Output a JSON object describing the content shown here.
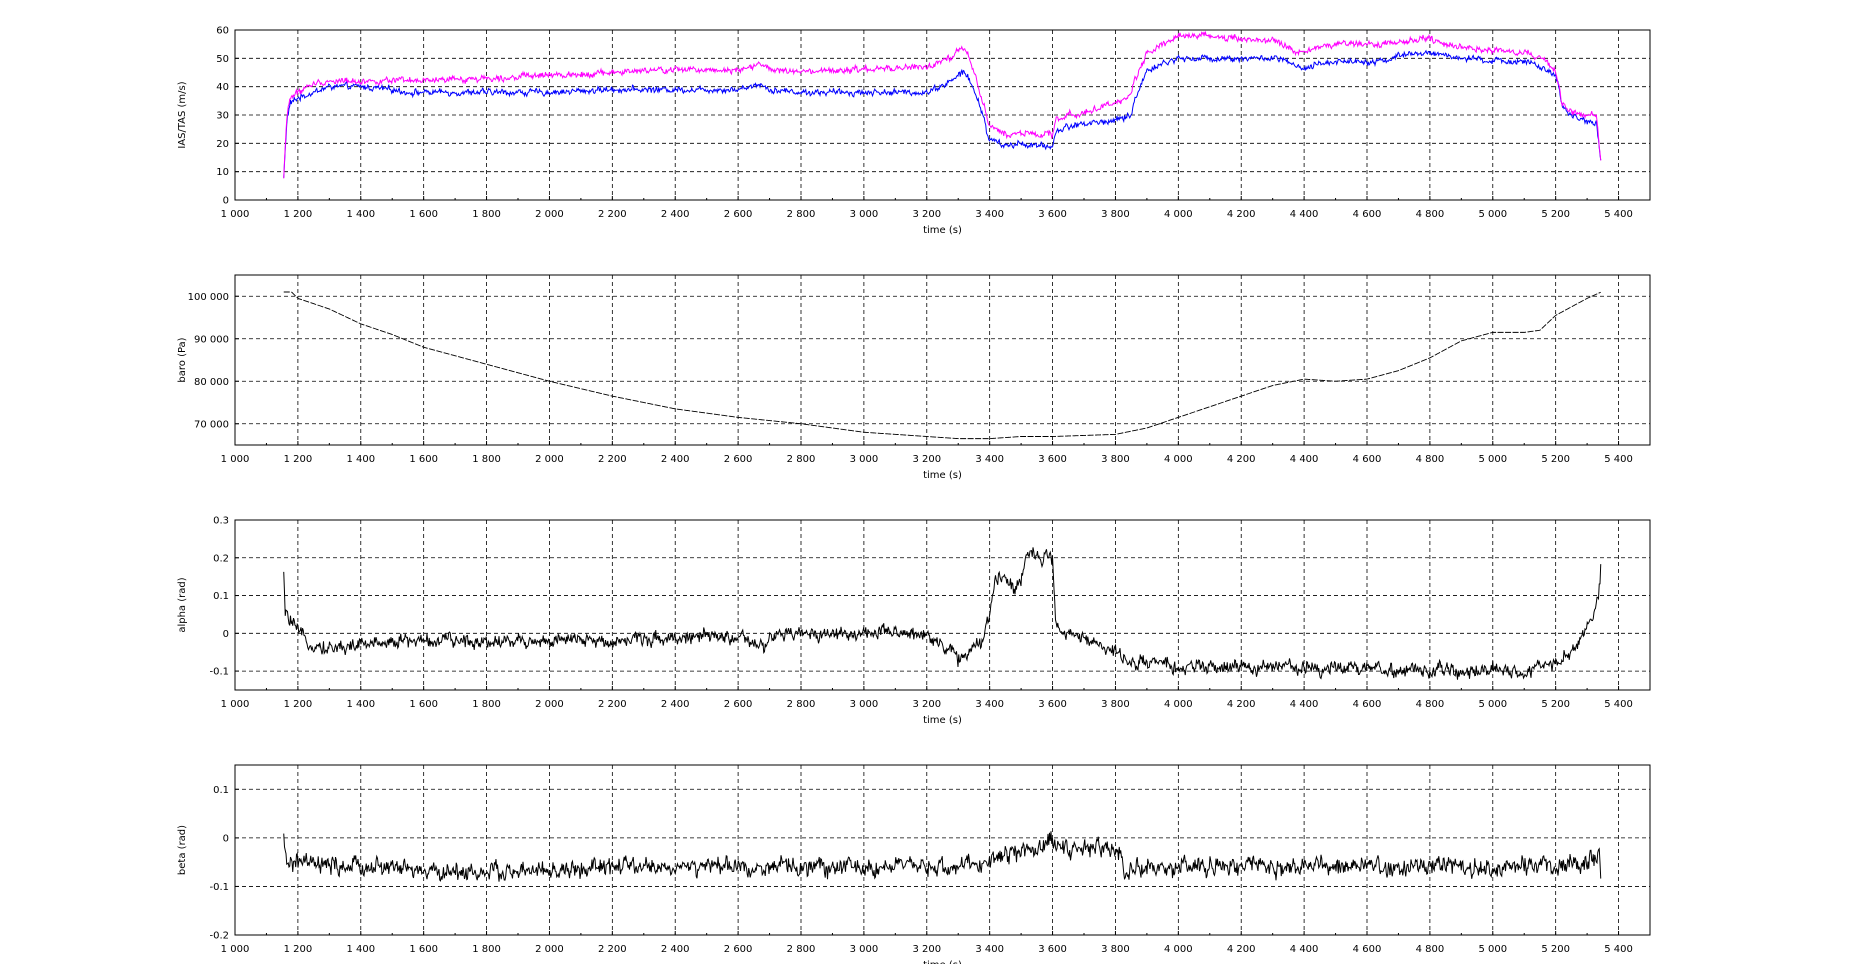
{
  "chart_data": [
    {
      "type": "line",
      "xlabel": "time (s)",
      "ylabel": "IAS/TAS (m/s)",
      "xlim": [
        1000,
        5500
      ],
      "ylim": [
        0,
        60
      ],
      "xticks": [
        "1 000",
        "1 200",
        "1 400",
        "1 600",
        "1 800",
        "2 000",
        "2 200",
        "2 400",
        "2 600",
        "2 800",
        "3 000",
        "3 200",
        "3 400",
        "3 600",
        "3 800",
        "4 000",
        "4 200",
        "4 400",
        "4 600",
        "4 800",
        "5 000",
        "5 200",
        "5 400"
      ],
      "yticks": [
        "0",
        "10",
        "20",
        "30",
        "40",
        "50",
        "60"
      ],
      "grid": true,
      "series": [
        {
          "color": "#0000ff",
          "noise": 1.5,
          "x": [
            1155,
            1165,
            1175,
            1200,
            1250,
            1300,
            1400,
            1500,
            1550,
            1600,
            1800,
            2000,
            2200,
            2400,
            2600,
            2670,
            2700,
            2800,
            3000,
            3200,
            3280,
            3310,
            3330,
            3380,
            3395,
            3410,
            3450,
            3500,
            3550,
            3600,
            3610,
            3650,
            3700,
            3800,
            3850,
            3860,
            3880,
            3900,
            3950,
            4000,
            4100,
            4200,
            4300,
            4350,
            4370,
            4400,
            4450,
            4500,
            4600,
            4650,
            4700,
            4800,
            4850,
            4900,
            5000,
            5100,
            5150,
            5180,
            5200,
            5210,
            5220,
            5250,
            5300,
            5320,
            5330,
            5345
          ],
          "y": [
            8,
            28,
            34,
            36,
            38,
            40,
            40,
            39,
            38,
            38,
            38,
            38,
            39,
            39,
            39,
            41,
            39,
            38,
            38,
            38,
            42,
            45,
            44,
            30,
            22,
            21,
            19,
            20,
            19,
            19,
            24,
            26,
            27,
            28,
            30,
            35,
            40,
            46,
            48,
            50,
            50,
            50,
            50,
            49,
            47,
            46,
            48,
            49,
            49,
            49,
            51,
            52,
            51,
            50,
            49,
            49,
            47,
            45,
            43,
            40,
            33,
            30,
            28,
            27,
            27,
            12
          ]
        },
        {
          "color": "#ff00ff",
          "noise": 1.5,
          "x": [
            1155,
            1165,
            1175,
            1200,
            1250,
            1300,
            1400,
            1500,
            1550,
            1600,
            1800,
            2000,
            2200,
            2400,
            2600,
            2670,
            2700,
            2800,
            3000,
            3200,
            3280,
            3310,
            3330,
            3380,
            3395,
            3410,
            3450,
            3500,
            3550,
            3600,
            3610,
            3650,
            3700,
            3800,
            3850,
            3860,
            3880,
            3900,
            3950,
            4000,
            4100,
            4200,
            4300,
            4350,
            4370,
            4400,
            4450,
            4500,
            4600,
            4650,
            4700,
            4800,
            4850,
            4900,
            5000,
            5100,
            5150,
            5180,
            5200,
            5210,
            5220,
            5250,
            5300,
            5320,
            5330,
            5345
          ],
          "y": [
            8,
            30,
            36,
            38,
            41,
            42,
            42,
            42,
            42,
            42,
            43,
            44,
            45,
            46,
            46,
            48,
            46,
            45,
            46,
            47,
            50,
            54,
            52,
            34,
            27,
            26,
            23,
            24,
            23,
            23,
            28,
            30,
            31,
            34,
            37,
            42,
            47,
            52,
            55,
            58,
            58,
            57,
            56,
            54,
            52,
            52,
            54,
            55,
            55,
            55,
            56,
            57,
            55,
            54,
            53,
            52,
            50,
            48,
            45,
            40,
            34,
            31,
            30,
            30,
            30,
            12
          ]
        }
      ]
    },
    {
      "type": "line",
      "xlabel": "time (s)",
      "ylabel": "baro (Pa)",
      "xlim": [
        1000,
        5500
      ],
      "ylim": [
        65000,
        105000
      ],
      "xticks": [
        "1 000",
        "1 200",
        "1 400",
        "1 600",
        "1 800",
        "2 000",
        "2 200",
        "2 400",
        "2 600",
        "2 800",
        "3 000",
        "3 200",
        "3 400",
        "3 600",
        "3 800",
        "4 000",
        "4 200",
        "4 400",
        "4 600",
        "4 800",
        "5 000",
        "5 200",
        "5 400"
      ],
      "yticks": [
        "70 000",
        "80 000",
        "90 000",
        "100 000"
      ],
      "grid": true,
      "series": [
        {
          "color": "#000000",
          "dashed": true,
          "noise": 0,
          "x": [
            1155,
            1180,
            1200,
            1300,
            1400,
            1500,
            1600,
            1800,
            2000,
            2200,
            2400,
            2600,
            2800,
            3000,
            3200,
            3300,
            3400,
            3500,
            3600,
            3800,
            3900,
            4000,
            4200,
            4300,
            4400,
            4500,
            4600,
            4700,
            4800,
            4900,
            5000,
            5100,
            5150,
            5200,
            5250,
            5300,
            5345
          ],
          "y": [
            101000,
            101000,
            99500,
            97000,
            93500,
            91000,
            88000,
            84000,
            80000,
            76500,
            73500,
            71500,
            70000,
            68000,
            67000,
            66500,
            66500,
            67000,
            67000,
            67500,
            69000,
            71500,
            76500,
            79000,
            80500,
            80000,
            80500,
            82500,
            85500,
            89500,
            91500,
            91500,
            92000,
            95500,
            97500,
            99500,
            101000
          ]
        }
      ]
    },
    {
      "type": "line",
      "xlabel": "time (s)",
      "ylabel": "alpha (rad)",
      "xlim": [
        1000,
        5500
      ],
      "ylim": [
        -0.15,
        0.3
      ],
      "xticks": [
        "1 000",
        "1 200",
        "1 400",
        "1 600",
        "1 800",
        "2 000",
        "2 200",
        "2 400",
        "2 600",
        "2 800",
        "3 000",
        "3 200",
        "3 400",
        "3 600",
        "3 800",
        "4 000",
        "4 200",
        "4 400",
        "4 600",
        "4 800",
        "5 000",
        "5 200",
        "5 400"
      ],
      "yticks": [
        "-0.1",
        "0",
        "0.1",
        "0.2",
        "0.3"
      ],
      "grid": true,
      "series": [
        {
          "color": "#000000",
          "noise": 0.025,
          "x": [
            1155,
            1160,
            1180,
            1200,
            1250,
            1300,
            1400,
            1500,
            1550,
            1600,
            1800,
            2000,
            2200,
            2400,
            2600,
            2650,
            2680,
            2700,
            2800,
            3000,
            3200,
            3280,
            3300,
            3380,
            3400,
            3420,
            3450,
            3480,
            3500,
            3520,
            3560,
            3590,
            3600,
            3610,
            3620,
            3700,
            3800,
            3850,
            3870,
            3900,
            4000,
            4200,
            4400,
            4500,
            4600,
            4700,
            4800,
            5000,
            5100,
            5200,
            5250,
            5300,
            5320,
            5340,
            5345
          ],
          "y": [
            0.15,
            0.05,
            0.03,
            0.0,
            -0.03,
            -0.04,
            -0.03,
            -0.02,
            -0.02,
            -0.02,
            -0.02,
            -0.02,
            -0.02,
            -0.01,
            -0.01,
            -0.03,
            -0.04,
            -0.01,
            0.0,
            0.0,
            0.0,
            -0.05,
            -0.07,
            -0.02,
            0.05,
            0.15,
            0.15,
            0.12,
            0.15,
            0.22,
            0.2,
            0.22,
            0.2,
            0.02,
            0.0,
            -0.01,
            -0.05,
            -0.08,
            -0.07,
            -0.08,
            -0.09,
            -0.09,
            -0.09,
            -0.09,
            -0.09,
            -0.1,
            -0.1,
            -0.1,
            -0.1,
            -0.08,
            -0.05,
            0.02,
            0.05,
            0.12,
            0.22
          ]
        }
      ]
    },
    {
      "type": "line",
      "xlabel": "time (s)",
      "ylabel": "beta (rad)",
      "xlim": [
        1000,
        5500
      ],
      "ylim": [
        -0.2,
        0.15
      ],
      "xticks": [
        "1 000",
        "1 200",
        "1 400",
        "1 600",
        "1 800",
        "2 000",
        "2 200",
        "2 400",
        "2 600",
        "2 800",
        "3 000",
        "3 200",
        "3 400",
        "3 600",
        "3 800",
        "4 000",
        "4 200",
        "4 400",
        "4 600",
        "4 800",
        "5 000",
        "5 200",
        "5 400"
      ],
      "yticks": [
        "-0.2",
        "-0.1",
        "0",
        "0.1"
      ],
      "grid": true,
      "series": [
        {
          "color": "#000000",
          "noise": 0.025,
          "x": [
            1155,
            1160,
            1200,
            1300,
            1400,
            1500,
            1600,
            1800,
            2000,
            2200,
            2400,
            2600,
            2800,
            3000,
            3200,
            3300,
            3400,
            3450,
            3500,
            3550,
            3600,
            3650,
            3700,
            3800,
            3820,
            3830,
            3850,
            3900,
            4000,
            4200,
            4400,
            4600,
            4800,
            5000,
            5200,
            5300,
            5340,
            5345
          ],
          "y": [
            0.0,
            -0.05,
            -0.05,
            -0.06,
            -0.06,
            -0.06,
            -0.07,
            -0.07,
            -0.07,
            -0.06,
            -0.06,
            -0.06,
            -0.06,
            -0.06,
            -0.06,
            -0.06,
            -0.05,
            -0.03,
            -0.03,
            -0.02,
            -0.01,
            -0.02,
            -0.02,
            -0.02,
            -0.04,
            -0.09,
            -0.06,
            -0.06,
            -0.06,
            -0.06,
            -0.06,
            -0.06,
            -0.06,
            -0.06,
            -0.06,
            -0.05,
            -0.03,
            -0.12
          ]
        }
      ]
    }
  ]
}
